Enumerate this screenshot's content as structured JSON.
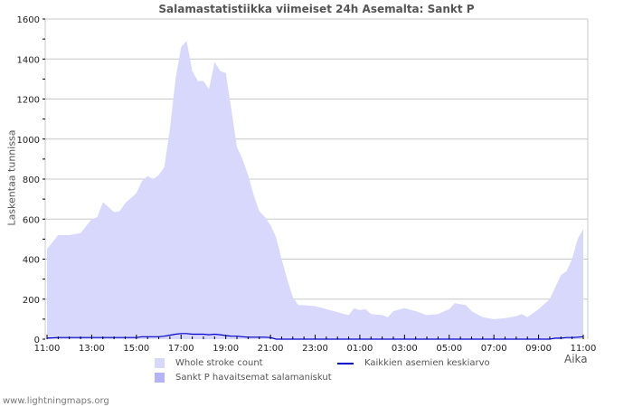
{
  "chart_data": {
    "type": "area",
    "title": "Salamastatistiikka viimeiset 24h Asemalta: Sankt P",
    "xlabel": "Aika",
    "ylabel": "Laskentaa tunnissa",
    "ylim": [
      0,
      1600
    ],
    "yticks": [
      0,
      200,
      400,
      600,
      800,
      1000,
      1200,
      1400,
      1600
    ],
    "xticks": [
      "11:00",
      "13:00",
      "15:00",
      "17:00",
      "19:00",
      "21:00",
      "23:00",
      "01:00",
      "03:00",
      "05:00",
      "07:00",
      "09:00",
      "11:00"
    ],
    "grid": true,
    "legend_position": "bottom",
    "x_hours": [
      0,
      0.5,
      1,
      1.5,
      2,
      2.25,
      2.5,
      3,
      3.25,
      3.5,
      4,
      4.25,
      4.5,
      4.75,
      5,
      5.25,
      5.5,
      5.75,
      6,
      6.25,
      6.5,
      6.75,
      7,
      7.25,
      7.5,
      7.75,
      8,
      8.25,
      8.5,
      8.75,
      9,
      9.25,
      9.5,
      9.75,
      10,
      10.25,
      10.5,
      10.75,
      11,
      11.25,
      11.5,
      12,
      12.5,
      13,
      13.5,
      13.75,
      14,
      14.25,
      14.5,
      15,
      15.25,
      15.5,
      16,
      16.5,
      17,
      17.5,
      18,
      18.25,
      18.5,
      18.75,
      19,
      19.5,
      20,
      20.5,
      21,
      21.25,
      21.5,
      22,
      22.5,
      22.75,
      23,
      23.25,
      23.5,
      23.75,
      24
    ],
    "series": [
      {
        "name": "Whole stroke count",
        "color": "#d8d8fc",
        "values": [
          450,
          520,
          520,
          530,
          600,
          610,
          685,
          635,
          640,
          680,
          730,
          790,
          815,
          800,
          820,
          860,
          1050,
          1300,
          1460,
          1490,
          1340,
          1290,
          1290,
          1250,
          1385,
          1340,
          1330,
          1150,
          960,
          900,
          820,
          720,
          640,
          610,
          570,
          510,
          400,
          300,
          210,
          170,
          170,
          165,
          150,
          135,
          120,
          155,
          145,
          150,
          125,
          120,
          110,
          140,
          155,
          140,
          120,
          125,
          150,
          180,
          175,
          170,
          140,
          110,
          100,
          105,
          115,
          125,
          110,
          150,
          200,
          260,
          320,
          340,
          400,
          500,
          550
        ]
      },
      {
        "name": "Sankt P havaitsemat salamaniskut",
        "color": "#b4b4fa",
        "values": [
          0,
          0,
          0,
          0,
          0,
          0,
          0,
          0,
          0,
          0,
          0,
          0,
          0,
          0,
          0,
          0,
          0,
          0,
          0,
          0,
          0,
          0,
          0,
          0,
          0,
          0,
          0,
          0,
          0,
          0,
          0,
          0,
          0,
          0,
          0,
          0,
          0,
          0,
          0,
          0,
          0,
          0,
          0,
          0,
          0,
          0,
          0,
          0,
          0,
          0,
          0,
          0,
          0,
          0,
          0,
          0,
          0,
          0,
          0,
          0,
          0,
          0,
          0,
          0,
          0,
          0,
          0,
          0,
          0,
          0,
          0,
          0,
          0,
          0,
          0
        ]
      },
      {
        "name": "Kaikkien asemien keskiarvo",
        "color": "#0000cc",
        "values": [
          5,
          8,
          8,
          8,
          8,
          8,
          8,
          8,
          8,
          8,
          8,
          12,
          12,
          12,
          12,
          15,
          20,
          25,
          28,
          28,
          25,
          25,
          25,
          22,
          25,
          22,
          18,
          15,
          15,
          12,
          10,
          10,
          10,
          10,
          8,
          0,
          0,
          0,
          0,
          0,
          0,
          0,
          0,
          0,
          0,
          0,
          0,
          0,
          0,
          0,
          0,
          0,
          0,
          0,
          0,
          0,
          0,
          0,
          0,
          0,
          0,
          0,
          0,
          0,
          0,
          0,
          0,
          0,
          0,
          5,
          5,
          8,
          8,
          10,
          12
        ]
      }
    ]
  },
  "title": "Salamastatistiikka viimeiset 24h Asemalta: Sankt P",
  "ylabel": "Laskentaa tunnissa",
  "xlabel": "Aika",
  "legend": {
    "whole": "Whole stroke count",
    "station": "Sankt P havaitsemat salamaniskut",
    "average": "Kaikkien asemien keskiarvo"
  },
  "footer": "www.lightningmaps.org",
  "colors": {
    "whole_fill": "#d8d8fc",
    "station_fill": "#b4b4fa",
    "average_line": "#0000cc",
    "grid": "#c8c8c8",
    "text": "#555555"
  }
}
